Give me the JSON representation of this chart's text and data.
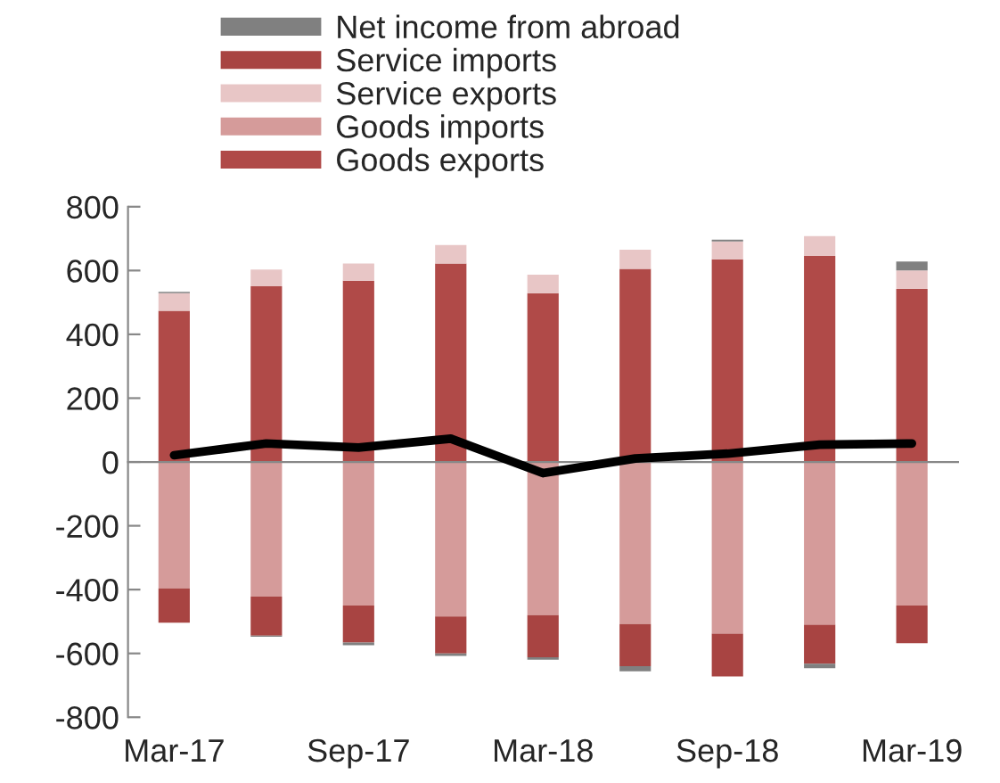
{
  "chart_data": {
    "type": "bar",
    "stacked": true,
    "categories": [
      "Mar-17",
      null,
      "Sep-17",
      null,
      "Mar-18",
      null,
      "Sep-18",
      null,
      "Mar-19"
    ],
    "series": [
      {
        "name": "Goods exports",
        "color": "#b04a48",
        "values": [
          474,
          551,
          568,
          622,
          529,
          605,
          635,
          646,
          542
        ]
      },
      {
        "name": "Goods imports",
        "color": "#d59b9a",
        "values": [
          -396,
          -422,
          -450,
          -484,
          -480,
          -508,
          -538,
          -510,
          -450
        ]
      },
      {
        "name": "Service exports",
        "color": "#e8c6c6",
        "values": [
          55,
          52,
          54,
          58,
          58,
          60,
          56,
          62,
          58
        ]
      },
      {
        "name": "Service imports",
        "color": "#a84442",
        "values": [
          -108,
          -122,
          -116,
          -116,
          -132,
          -132,
          -134,
          -122,
          -118
        ]
      },
      {
        "name": "Net income from abroad",
        "color": "#808080",
        "values": [
          4,
          -4,
          -8,
          -8,
          -8,
          -16,
          6,
          -14,
          28
        ]
      },
      {
        "type": "line",
        "color": "#000000",
        "values": [
          21,
          58,
          45,
          73,
          -35,
          11,
          26,
          54,
          58
        ]
      }
    ],
    "ylim": [
      -800,
      800
    ],
    "yticks": [
      -800,
      -600,
      -400,
      -200,
      0,
      200,
      400,
      600,
      800
    ],
    "legend": "top"
  }
}
